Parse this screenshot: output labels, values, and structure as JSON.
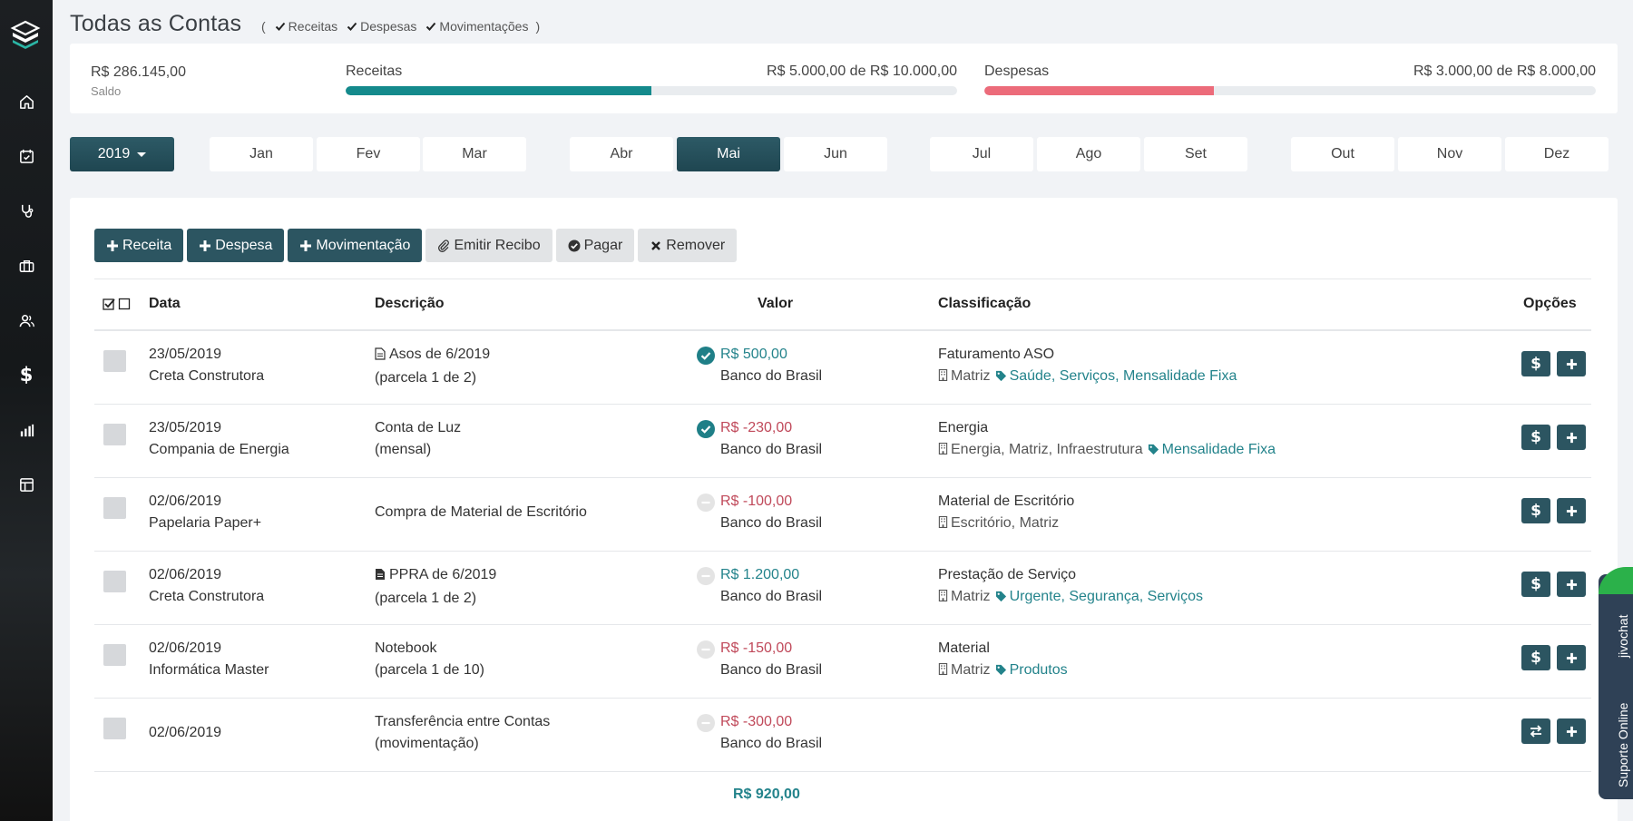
{
  "header": {
    "title": "Todas as Contas",
    "filter_open": "(",
    "filter_close": ")",
    "filters": [
      "Receitas",
      "Despesas",
      "Movimentações"
    ]
  },
  "summary": {
    "saldo_value": "R$ 286.145,00",
    "saldo_label": "Saldo",
    "receitas_label": "Receitas",
    "receitas_value": "R$ 5.000,00 de R$ 10.000,00",
    "receitas_progress": 0.5,
    "despesas_label": "Despesas",
    "despesas_value": "R$ 3.000,00 de R$ 8.000,00",
    "despesas_progress": 0.375
  },
  "colors": {
    "accent": "#1f8a8f",
    "receitas_bar": "#148a8c",
    "despesas_bar": "#ec6b7a",
    "dark_button": "#2c5561",
    "positive": "#23838b",
    "negative": "#c0495a"
  },
  "calendar": {
    "year": "2019",
    "months": [
      "Jan",
      "Fev",
      "Mar",
      "Abr",
      "Mai",
      "Jun",
      "Jul",
      "Ago",
      "Set",
      "Out",
      "Nov",
      "Dez"
    ],
    "active_month": "Mai"
  },
  "toolbar": {
    "receita": "Receita",
    "despesa": "Despesa",
    "movimentacao": "Movimentação",
    "emitir_recibo": "Emitir Recibo",
    "pagar": "Pagar",
    "remover": "Remover"
  },
  "table": {
    "headers": {
      "data": "Data",
      "descricao": "Descrição",
      "valor": "Valor",
      "classificacao": "Classificação",
      "opcoes": "Opções"
    },
    "rows": [
      {
        "date": "23/05/2019",
        "party": "Creta Construtora",
        "desc1": "Asos de 6/2019",
        "desc2": "(parcela 1 de 2)",
        "desc_icon": "file-outline-icon",
        "status": "paid",
        "amount": "R$ 500,00",
        "sign": "pos",
        "account": "Banco do Brasil",
        "class_title": "Faturamento ASO",
        "class_units": "Matriz",
        "class_tags": "Saúde, Serviços, Mensalidade Fixa",
        "option1": "dollar-icon"
      },
      {
        "date": "23/05/2019",
        "party": "Compania de Energia",
        "desc1": "Conta de Luz",
        "desc2": "(mensal)",
        "status": "paid",
        "amount": "R$ -230,00",
        "sign": "neg",
        "account": "Banco do Brasil",
        "class_title": "Energia",
        "class_units": "Energia, Matriz, Infraestrutura",
        "class_tags": "Mensalidade Fixa",
        "option1": "dollar-icon"
      },
      {
        "date": "02/06/2019",
        "party": "Papelaria Paper+",
        "desc1": "Compra de Material de Escritório",
        "status": "pending",
        "amount": "R$ -100,00",
        "sign": "neg",
        "account": "Banco do Brasil",
        "class_title": "Material de Escritório",
        "class_units": "Escritório, Matriz",
        "option1": "dollar-icon"
      },
      {
        "date": "02/06/2019",
        "party": "Creta Construtora",
        "desc1": "PPRA de 6/2019",
        "desc2": "(parcela 1 de 2)",
        "desc_icon": "file-solid-icon",
        "status": "pending",
        "amount": "R$ 1.200,00",
        "sign": "pos",
        "account": "Banco do Brasil",
        "class_title": "Prestação de Serviço",
        "class_units": "Matriz",
        "class_tags": "Urgente, Segurança, Serviços",
        "option1": "dollar-icon"
      },
      {
        "date": "02/06/2019",
        "party": "Informática Master",
        "desc1": "Notebook",
        "desc2": "(parcela 1 de 10)",
        "status": "pending",
        "amount": "R$ -150,00",
        "sign": "neg",
        "account": "Banco do Brasil",
        "class_title": "Material",
        "class_units": "Matriz",
        "class_tags": "Produtos",
        "option1": "dollar-icon"
      },
      {
        "date": "02/06/2019",
        "desc1": "Transferência entre Contas",
        "desc2": "(movimentação)",
        "status": "pending",
        "amount": "R$ -300,00",
        "sign": "neg",
        "account": "Banco do Brasil",
        "option1": "transfer-icon"
      }
    ],
    "total": "R$ 920,00"
  },
  "chat": {
    "brand": "jivochat",
    "label": "Suporte Online"
  }
}
